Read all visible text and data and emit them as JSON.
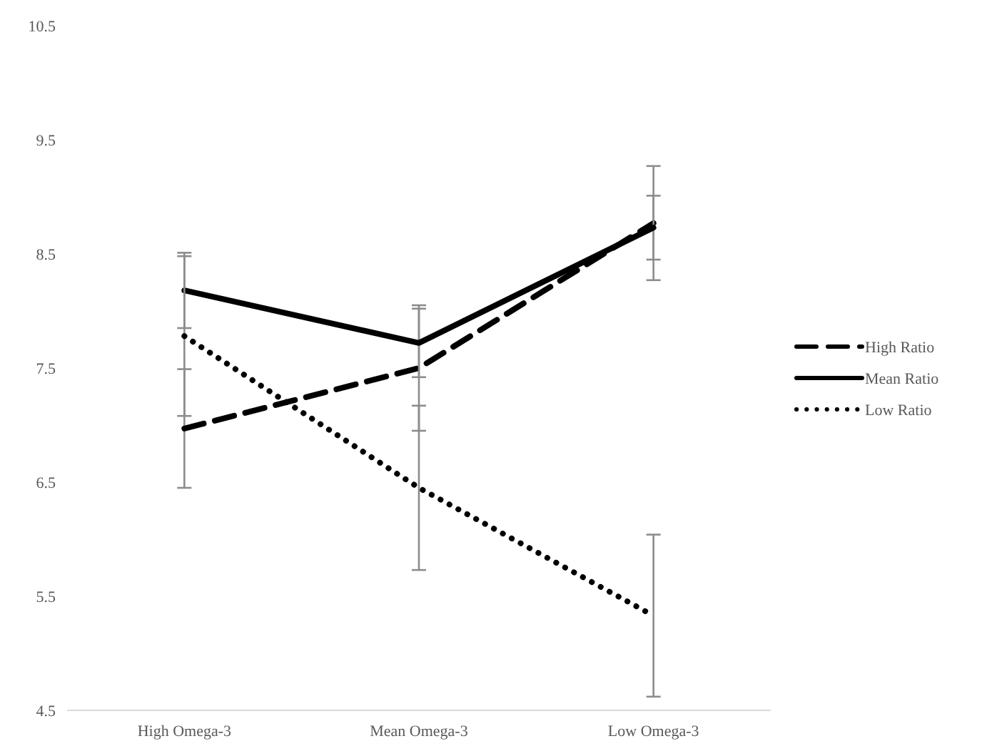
{
  "chart_data": {
    "type": "line",
    "categories": [
      "High Omega-3",
      "Mean Omega-3",
      "Low Omega-3"
    ],
    "ylim": [
      4.5,
      10.5
    ],
    "yticks": [
      4.5,
      5.5,
      6.5,
      7.5,
      8.5,
      9.5,
      10.5
    ],
    "grid": false,
    "legend": "right",
    "marker": "none",
    "series": [
      {
        "name": "High Ratio",
        "color": "#000000",
        "line_style": "dashed",
        "values": [
          6.97,
          7.5,
          8.77
        ],
        "errors": [
          0.52,
          0.55,
          0.5
        ]
      },
      {
        "name": "Mean Ratio",
        "color": "#000000",
        "line_style": "solid",
        "values": [
          8.18,
          7.72,
          8.73
        ],
        "errors": [
          0.33,
          0.3,
          0.28
        ]
      },
      {
        "name": "Low Ratio",
        "color": "#000000",
        "line_style": "dotted",
        "values": [
          7.78,
          6.45,
          5.33
        ],
        "errors": [
          0.7,
          0.72,
          0.71
        ]
      }
    ]
  }
}
